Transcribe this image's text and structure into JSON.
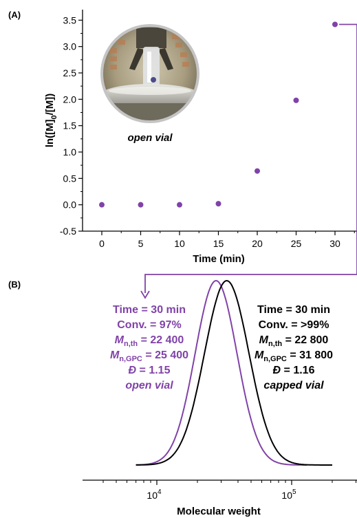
{
  "colors": {
    "open": "#8042a8",
    "capped": "#000000",
    "axis": "#000000"
  },
  "chart_data": [
    {
      "panel_label": "(A)",
      "type": "scatter",
      "xlabel": "Time (min)",
      "ylabel": "ln([M]0/[M])",
      "ylabel_parts": {
        "pre": "ln([M]",
        "sub": "0",
        "post": "/[M])"
      },
      "xlim": [
        -5,
        32.5
      ],
      "ylim": [
        -0.5,
        3.7
      ],
      "x_ticks": [
        "0",
        "5",
        "10",
        "15",
        "20",
        "25",
        "30"
      ],
      "y_ticks": [
        "-0.5",
        "0.0",
        "0.5",
        "1.0",
        "1.5",
        "2.0",
        "2.5",
        "3.0",
        "3.5"
      ],
      "series": [
        {
          "x": [
            0,
            5,
            10,
            15,
            20,
            25,
            30
          ],
          "y": [
            0.0,
            0.0,
            0.0,
            0.02,
            0.64,
            1.98,
            3.42
          ]
        }
      ],
      "inset": {
        "icon": "photo-open-vial",
        "caption": "open vial"
      }
    },
    {
      "panel_label": "(B)",
      "type": "line",
      "xlabel": "Molecular weight",
      "xscale": "log",
      "xlim": [
        3000,
        300000
      ],
      "x_ticks": [
        {
          "value": 10000,
          "base": "10",
          "exp": "4"
        },
        {
          "value": 100000,
          "base": "10",
          "exp": "5"
        }
      ],
      "series": [
        {
          "key": "open",
          "peak": 27500,
          "sigma_log": 0.155,
          "x_start": 7000,
          "x_end": 130000
        },
        {
          "key": "capped",
          "peak": 33000,
          "sigma_log": 0.165,
          "x_start": 7000,
          "x_end": 200000
        }
      ],
      "annotations": {
        "open": {
          "time": "Time = 30 min",
          "conv": "Conv. = 97%",
          "mnth_label": "M",
          "mnth_sub": "n,th",
          "mnth_value": " = 22 400",
          "mngpc_label": "M",
          "mngpc_sub": "n,GPC",
          "mngpc_value": " = 25 400",
          "d_label": "Đ",
          "d_value": " = 1.15",
          "note": "open vial"
        },
        "capped": {
          "time": "Time = 30 min",
          "conv": "Conv. = >99%",
          "mnth_label": "M",
          "mnth_sub": "n,th",
          "mnth_value": " = 22 800",
          "mngpc_label": "M",
          "mngpc_sub": "n,GPC",
          "mngpc_value": " = 31 800",
          "d_label": "Đ",
          "d_value": " = 1.16",
          "note": "capped vial"
        }
      }
    }
  ]
}
